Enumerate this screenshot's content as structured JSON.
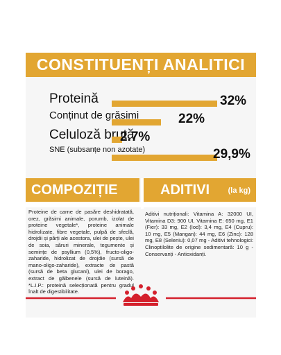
{
  "header": {
    "title": "CONSTITUENȚI ANALITICI"
  },
  "analytics": [
    {
      "label": "Proteină",
      "value": "32%",
      "fraction": 1.0
    },
    {
      "label": "Conținut de grăsimi",
      "value": "22%",
      "fraction": 0.47
    },
    {
      "label": "Celuloză brută",
      "value": "2.7%",
      "fraction": 0.1
    },
    {
      "label": "SNE (subsanțe non azotate)",
      "value": "29,9%",
      "fraction": 1.0
    }
  ],
  "composition": {
    "heading": "COMPOZIȚIE",
    "text": "Proteine de carne de pasăre deshidratată, orez, grăsimi animale, porumb, izolat de proteine vegetale*, proteine animale hidrolizate, fibre vegetale, pulpă de sfeclă, drojdii și părți ale acestora, ulei de pește, ulei de soia, săruri minerale, tegumente și semințe de psyllium (0,5%), fructo-oligo-zaharide, hidrolizat de drojdie (sursă de mano-oligo-zaharide), extracte de pastă (sursă de beta glucani), ulei de borago, extract de gălbenele (sursă de luteină). *L.I.P.: proteină selecționată pentru gradul înalt de digestibilitate."
  },
  "additives": {
    "heading": "ADITIVI",
    "unit": "(la kg)",
    "text": "Aditivi nutriționali: Vitamina A: 32000 UI, Vitamina D3: 900 UI, Vitamina E: 650 mg, E1 (Fier): 33 mg, E2 (Iod): 3,4 mg, E4 (Cupru): 10 mg, E5 (Mangan): 44 mg, E6 (Zinc): 128 mg, E8 (Seleniu): 0,07 mg - Aditivi tehnologici: Clinoptilolite de origine sedimentară: 10 g - Conservanți - Antioxidanți."
  },
  "colors": {
    "accent": "#e2a632",
    "brand_red": "#d4202c",
    "panel": "#f6f6f6"
  },
  "logo": {
    "icon": "royal-canin-crown-icon"
  }
}
